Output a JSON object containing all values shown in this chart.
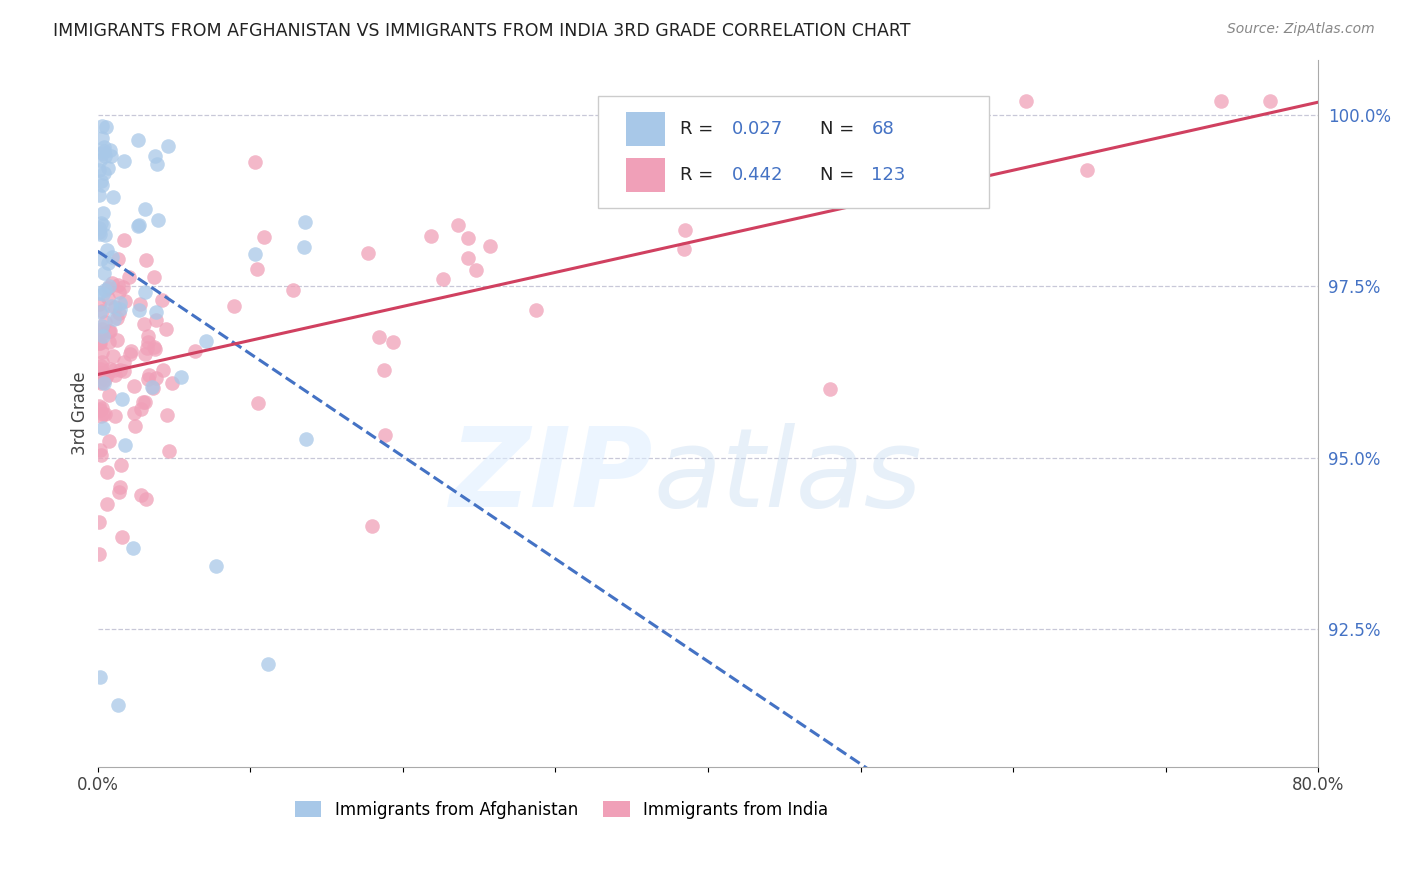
{
  "title": "IMMIGRANTS FROM AFGHANISTAN VS IMMIGRANTS FROM INDIA 3RD GRADE CORRELATION CHART",
  "source": "Source: ZipAtlas.com",
  "ylabel": "3rd Grade",
  "ylabel_right_ticks": [
    "100.0%",
    "97.5%",
    "95.0%",
    "92.5%"
  ],
  "ylabel_right_vals": [
    1.0,
    0.975,
    0.95,
    0.925
  ],
  "xlim": [
    0.0,
    0.8
  ],
  "ylim": [
    0.905,
    1.008
  ],
  "afghanistan_R": 0.027,
  "afghanistan_N": 68,
  "india_R": 0.442,
  "india_N": 123,
  "afghanistan_color": "#a8c8e8",
  "india_color": "#f0a0b8",
  "afghanistan_line_color": "#4472c4",
  "india_line_color": "#d04060",
  "background_color": "#ffffff",
  "grid_color": "#c8c8d8",
  "tick_color": "#4472c4"
}
